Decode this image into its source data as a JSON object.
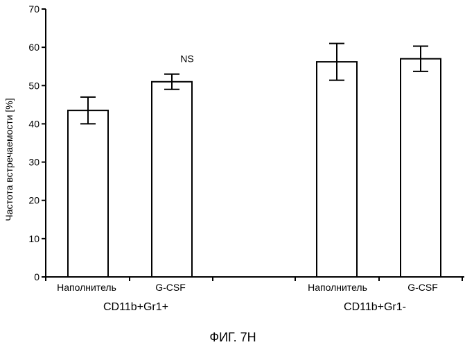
{
  "chart_data": {
    "type": "bar",
    "ylabel": "Частота встречаемости [%]",
    "ylim": [
      0,
      70
    ],
    "yticks": [
      0,
      10,
      20,
      30,
      40,
      50,
      60,
      70
    ],
    "grid": false,
    "categories": [
      "Наполнитель",
      "G-CSF",
      "Наполнитель",
      "G-CSF"
    ],
    "groups": [
      {
        "label": "CD11b+Gr1+",
        "members": [
          0,
          1
        ]
      },
      {
        "label": "CD11b+Gr1-",
        "members": [
          2,
          3
        ]
      }
    ],
    "values": [
      43.5,
      51.0,
      56.2,
      57.0
    ],
    "errors": [
      3.5,
      2.0,
      4.8,
      3.3
    ],
    "annotations": [
      {
        "text": "NS",
        "bar_index": 1
      }
    ]
  },
  "caption": "ФИГ. 7H"
}
